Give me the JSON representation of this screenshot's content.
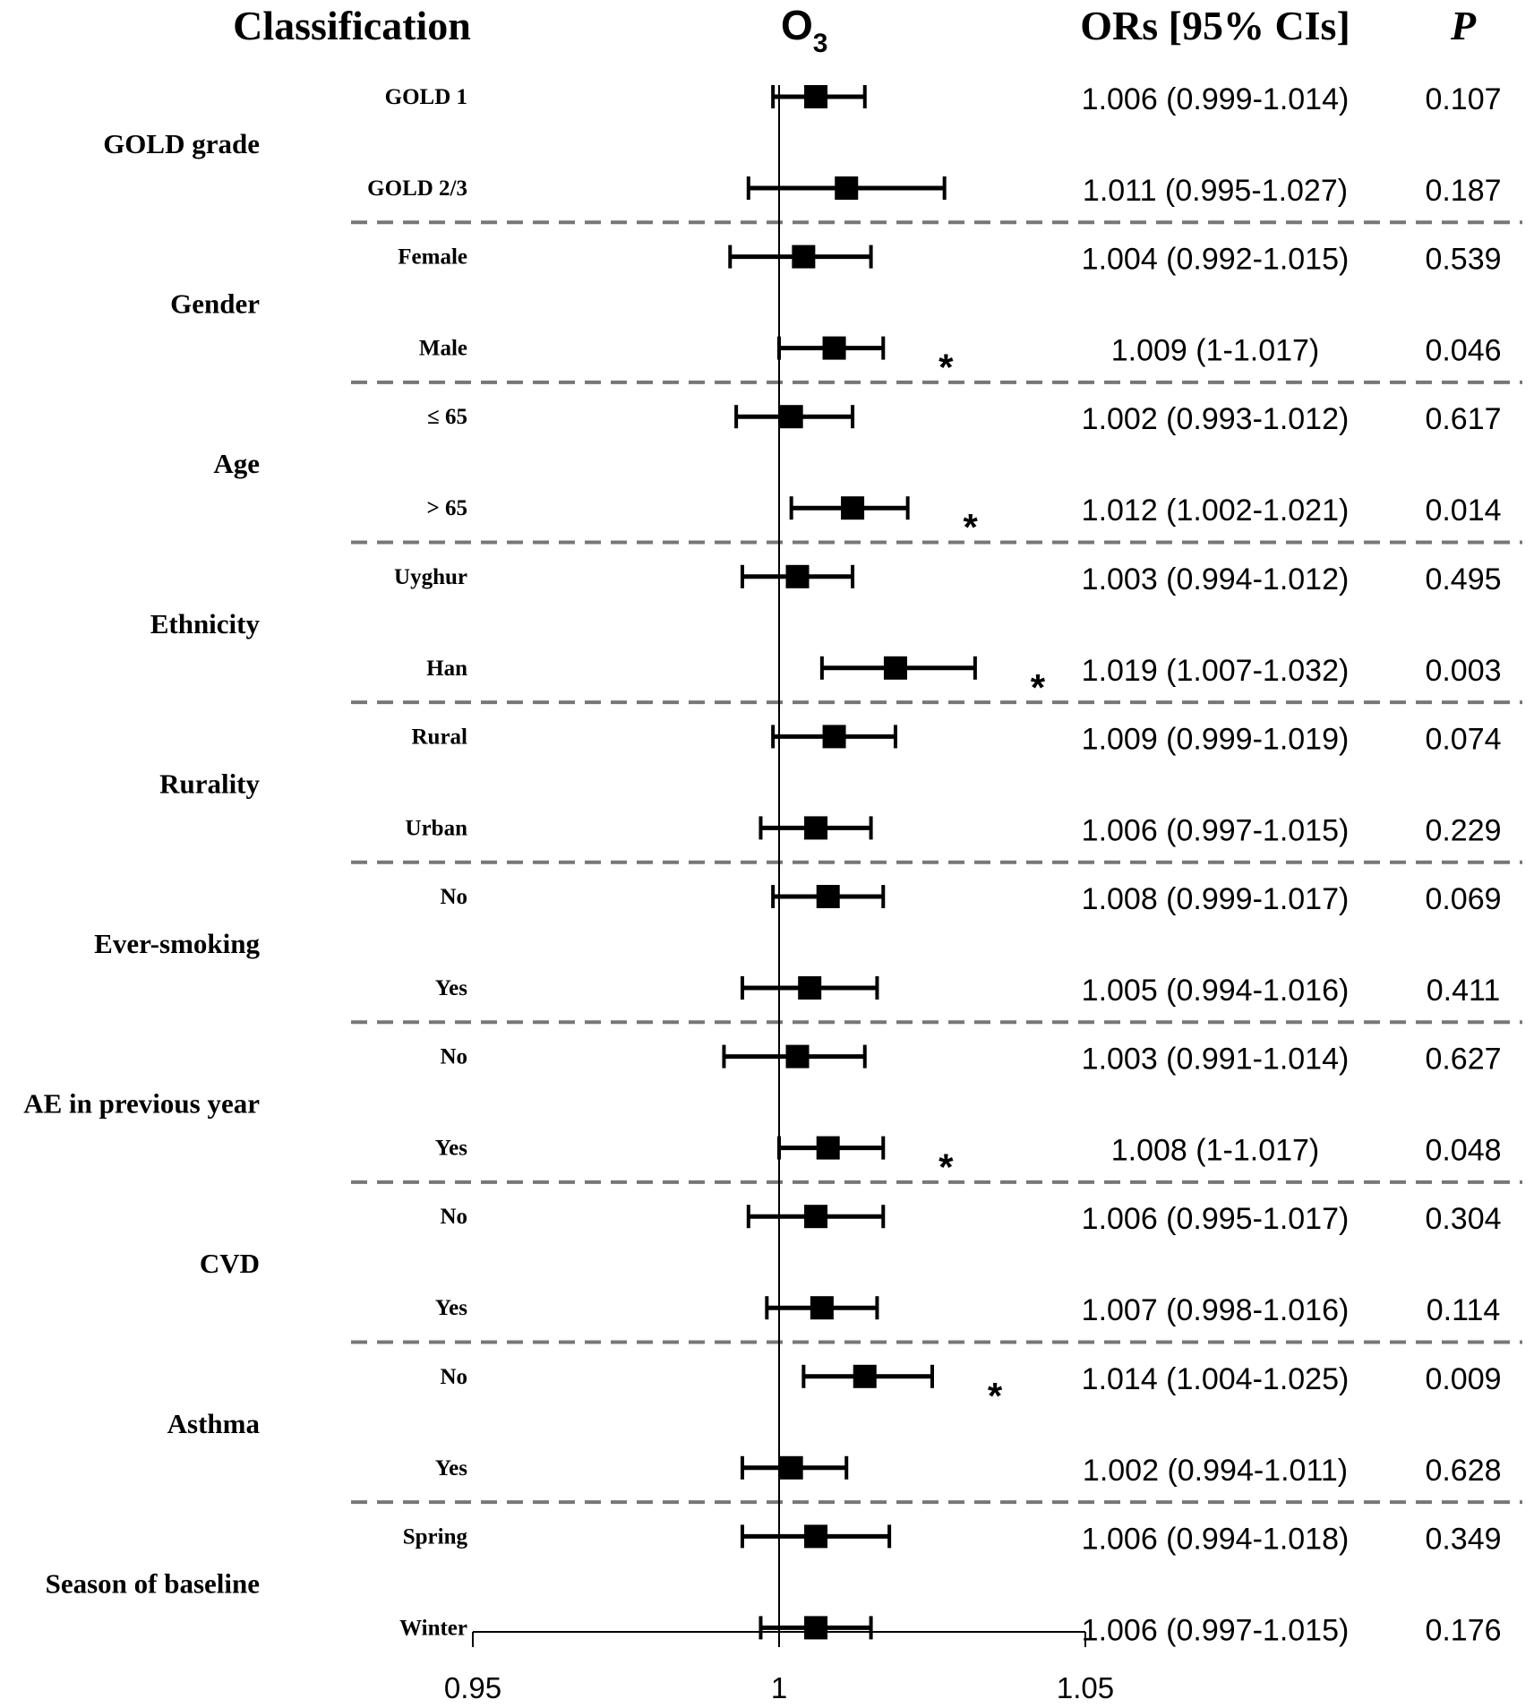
{
  "chart_data": {
    "type": "forest",
    "headers": {
      "classification": "Classification",
      "exposure_main": "O",
      "exposure_sub": "3",
      "ors": "ORs [95% CIs]",
      "p": "P"
    },
    "reference_value": 1,
    "xlim": [
      0.95,
      1.05
    ],
    "xticks": [
      "0.95",
      "1",
      "1.05"
    ],
    "significance_marker": "*",
    "groups": [
      {
        "label": "GOLD grade",
        "rows": [
          {
            "label": "GOLD 1",
            "or": 1.006,
            "lo": 0.999,
            "hi": 1.014,
            "or_text": "1.006 (0.999-1.014)",
            "p": "0.107",
            "sig": false
          },
          {
            "label": "GOLD 2/3",
            "or": 1.011,
            "lo": 0.995,
            "hi": 1.027,
            "or_text": "1.011 (0.995-1.027)",
            "p": "0.187",
            "sig": false
          }
        ]
      },
      {
        "label": "Gender",
        "rows": [
          {
            "label": "Female",
            "or": 1.004,
            "lo": 0.992,
            "hi": 1.015,
            "or_text": "1.004 (0.992-1.015)",
            "p": "0.539",
            "sig": false
          },
          {
            "label": "Male",
            "or": 1.009,
            "lo": 1.0,
            "hi": 1.017,
            "or_text": "1.009 (1-1.017)",
            "p": "0.046",
            "sig": true
          }
        ]
      },
      {
        "label": "Age",
        "rows": [
          {
            "label": "≤ 65",
            "or": 1.002,
            "lo": 0.993,
            "hi": 1.012,
            "or_text": "1.002 (0.993-1.012)",
            "p": "0.617",
            "sig": false
          },
          {
            "label": "> 65",
            "or": 1.012,
            "lo": 1.002,
            "hi": 1.021,
            "or_text": "1.012 (1.002-1.021)",
            "p": "0.014",
            "sig": true
          }
        ]
      },
      {
        "label": "Ethnicity",
        "rows": [
          {
            "label": "Uyghur",
            "or": 1.003,
            "lo": 0.994,
            "hi": 1.012,
            "or_text": "1.003 (0.994-1.012)",
            "p": "0.495",
            "sig": false
          },
          {
            "label": "Han",
            "or": 1.019,
            "lo": 1.007,
            "hi": 1.032,
            "or_text": "1.019 (1.007-1.032)",
            "p": "0.003",
            "sig": true
          }
        ]
      },
      {
        "label": "Rurality",
        "rows": [
          {
            "label": "Rural",
            "or": 1.009,
            "lo": 0.999,
            "hi": 1.019,
            "or_text": "1.009 (0.999-1.019)",
            "p": "0.074",
            "sig": false
          },
          {
            "label": "Urban",
            "or": 1.006,
            "lo": 0.997,
            "hi": 1.015,
            "or_text": "1.006 (0.997-1.015)",
            "p": "0.229",
            "sig": false
          }
        ]
      },
      {
        "label": "Ever-smoking",
        "rows": [
          {
            "label": "No",
            "or": 1.008,
            "lo": 0.999,
            "hi": 1.017,
            "or_text": "1.008 (0.999-1.017)",
            "p": "0.069",
            "sig": false
          },
          {
            "label": "Yes",
            "or": 1.005,
            "lo": 0.994,
            "hi": 1.016,
            "or_text": "1.005 (0.994-1.016)",
            "p": "0.411",
            "sig": false
          }
        ]
      },
      {
        "label": "AE in previous year",
        "rows": [
          {
            "label": "No",
            "or": 1.003,
            "lo": 0.991,
            "hi": 1.014,
            "or_text": "1.003 (0.991-1.014)",
            "p": "0.627",
            "sig": false
          },
          {
            "label": "Yes",
            "or": 1.008,
            "lo": 1.0,
            "hi": 1.017,
            "or_text": "1.008 (1-1.017)",
            "p": "0.048",
            "sig": true
          }
        ]
      },
      {
        "label": "CVD",
        "rows": [
          {
            "label": "No",
            "or": 1.006,
            "lo": 0.995,
            "hi": 1.017,
            "or_text": "1.006 (0.995-1.017)",
            "p": "0.304",
            "sig": false
          },
          {
            "label": "Yes",
            "or": 1.007,
            "lo": 0.998,
            "hi": 1.016,
            "or_text": "1.007 (0.998-1.016)",
            "p": "0.114",
            "sig": false
          }
        ]
      },
      {
        "label": "Asthma",
        "rows": [
          {
            "label": "No",
            "or": 1.014,
            "lo": 1.004,
            "hi": 1.025,
            "or_text": "1.014 (1.004-1.025)",
            "p": "0.009",
            "sig": true
          },
          {
            "label": "Yes",
            "or": 1.002,
            "lo": 0.994,
            "hi": 1.011,
            "or_text": "1.002 (0.994-1.011)",
            "p": "0.628",
            "sig": false
          }
        ]
      },
      {
        "label": "Season of baseline",
        "rows": [
          {
            "label": "Spring",
            "or": 1.006,
            "lo": 0.994,
            "hi": 1.018,
            "or_text": "1.006 (0.994-1.018)",
            "p": "0.349",
            "sig": false
          },
          {
            "label": "Winter",
            "or": 1.006,
            "lo": 0.997,
            "hi": 1.015,
            "or_text": "1.006 (0.997-1.015)",
            "p": "0.176",
            "sig": false
          }
        ]
      }
    ]
  }
}
